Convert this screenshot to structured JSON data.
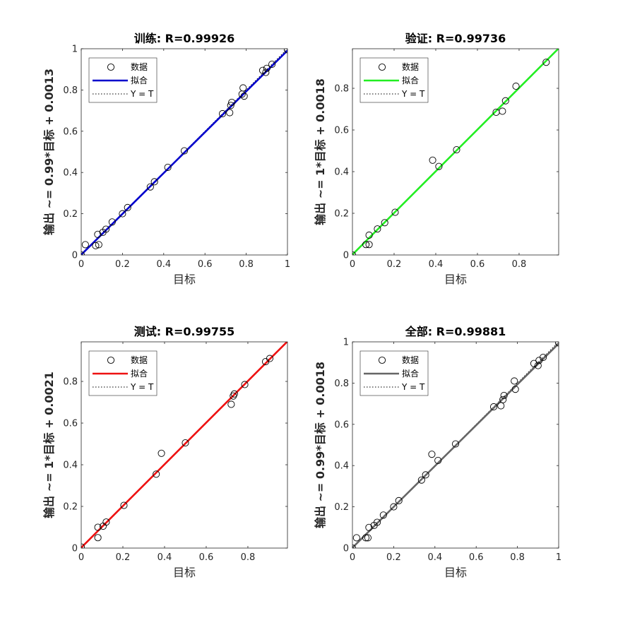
{
  "chart_data": [
    {
      "type": "scatter",
      "title": "训练: R=0.99926",
      "xlabel": "目标",
      "ylabel": "输出 ~= 0.99*目标 + 0.0013",
      "xlim": [
        0,
        1
      ],
      "ylim": [
        0,
        1
      ],
      "xticks": [
        "0",
        "0.2",
        "0.4",
        "0.6",
        "0.8",
        "1"
      ],
      "yticks": [
        "0",
        "0.2",
        "0.4",
        "0.6",
        "0.8",
        "1"
      ],
      "fit_color": "#0000cc",
      "fit": {
        "slope": 0.99,
        "intercept": 0.0013
      },
      "legend": {
        "position": "top-left",
        "data_label": "数据",
        "fit_label": "拟合",
        "ref_label": "Y = T"
      },
      "grid": false,
      "points": [
        [
          0.0,
          0.0
        ],
        [
          0.02,
          0.05
        ],
        [
          0.07,
          0.045
        ],
        [
          0.08,
          0.1
        ],
        [
          0.085,
          0.05
        ],
        [
          0.105,
          0.11
        ],
        [
          0.12,
          0.125
        ],
        [
          0.15,
          0.16
        ],
        [
          0.2,
          0.2
        ],
        [
          0.225,
          0.23
        ],
        [
          0.335,
          0.33
        ],
        [
          0.355,
          0.355
        ],
        [
          0.42,
          0.425
        ],
        [
          0.5,
          0.505
        ],
        [
          0.685,
          0.685
        ],
        [
          0.72,
          0.69
        ],
        [
          0.725,
          0.725
        ],
        [
          0.73,
          0.74
        ],
        [
          0.78,
          0.78
        ],
        [
          0.785,
          0.81
        ],
        [
          0.79,
          0.77
        ],
        [
          0.88,
          0.895
        ],
        [
          0.895,
          0.885
        ],
        [
          0.9,
          0.905
        ],
        [
          0.925,
          0.925
        ],
        [
          1.0,
          0.995
        ]
      ]
    },
    {
      "type": "scatter",
      "title": "验证: R=0.99736",
      "xlabel": "目标",
      "ylabel": "输出 ~= 1*目标 + 0.0018",
      "xlim": [
        0,
        0.99
      ],
      "ylim": [
        0,
        0.99
      ],
      "xticks": [
        "0",
        "0.2",
        "0.4",
        "0.6",
        "0.8"
      ],
      "yticks": [
        "0",
        "0.2",
        "0.4",
        "0.6",
        "0.8"
      ],
      "fit_color": "#22ee22",
      "fit": {
        "slope": 1.0,
        "intercept": 0.0018
      },
      "legend": {
        "position": "top-left",
        "data_label": "数据",
        "fit_label": "拟合",
        "ref_label": "Y = T"
      },
      "grid": false,
      "points": [
        [
          0.0,
          0.0
        ],
        [
          0.065,
          0.05
        ],
        [
          0.08,
          0.05
        ],
        [
          0.08,
          0.095
        ],
        [
          0.12,
          0.125
        ],
        [
          0.155,
          0.155
        ],
        [
          0.205,
          0.205
        ],
        [
          0.385,
          0.455
        ],
        [
          0.415,
          0.425
        ],
        [
          0.5,
          0.505
        ],
        [
          0.69,
          0.685
        ],
        [
          0.72,
          0.69
        ],
        [
          0.735,
          0.74
        ],
        [
          0.785,
          0.81
        ],
        [
          0.93,
          0.925
        ]
      ]
    },
    {
      "type": "scatter",
      "title": "测试: R=0.99755",
      "xlabel": "目标",
      "ylabel": "输出 ~= 1*目标 + 0.0021",
      "xlim": [
        0,
        0.99
      ],
      "ylim": [
        0,
        0.99
      ],
      "xticks": [
        "0",
        "0.2",
        "0.4",
        "0.6",
        "0.8"
      ],
      "yticks": [
        "0",
        "0.2",
        "0.4",
        "0.6",
        "0.8"
      ],
      "fit_color": "#ee1111",
      "fit": {
        "slope": 1.0,
        "intercept": 0.0021
      },
      "legend": {
        "position": "top-left",
        "data_label": "数据",
        "fit_label": "拟合",
        "ref_label": "Y = T"
      },
      "grid": false,
      "points": [
        [
          0.0,
          0.005
        ],
        [
          0.08,
          0.1
        ],
        [
          0.08,
          0.05
        ],
        [
          0.105,
          0.105
        ],
        [
          0.12,
          0.125
        ],
        [
          0.205,
          0.205
        ],
        [
          0.36,
          0.355
        ],
        [
          0.385,
          0.455
        ],
        [
          0.5,
          0.505
        ],
        [
          0.72,
          0.69
        ],
        [
          0.73,
          0.73
        ],
        [
          0.735,
          0.74
        ],
        [
          0.785,
          0.785
        ],
        [
          0.885,
          0.895
        ],
        [
          0.905,
          0.91
        ]
      ]
    },
    {
      "type": "scatter",
      "title": "全部: R=0.99881",
      "xlabel": "目标",
      "ylabel": "输出 ~= 0.99*目标 + 0.0018",
      "xlim": [
        0,
        1
      ],
      "ylim": [
        0,
        1
      ],
      "xticks": [
        "0",
        "0.2",
        "0.4",
        "0.6",
        "0.8",
        "1"
      ],
      "yticks": [
        "0",
        "0.2",
        "0.4",
        "0.6",
        "0.8",
        "1"
      ],
      "fit_color": "#666666",
      "fit": {
        "slope": 0.99,
        "intercept": 0.0018
      },
      "legend": {
        "position": "top-left",
        "data_label": "数据",
        "fit_label": "拟合",
        "ref_label": "Y = T"
      },
      "grid": false,
      "points": [
        [
          0.0,
          0.0
        ],
        [
          0.02,
          0.05
        ],
        [
          0.065,
          0.05
        ],
        [
          0.075,
          0.05
        ],
        [
          0.08,
          0.1
        ],
        [
          0.105,
          0.11
        ],
        [
          0.12,
          0.125
        ],
        [
          0.15,
          0.16
        ],
        [
          0.2,
          0.2
        ],
        [
          0.225,
          0.23
        ],
        [
          0.335,
          0.33
        ],
        [
          0.355,
          0.355
        ],
        [
          0.385,
          0.455
        ],
        [
          0.415,
          0.425
        ],
        [
          0.5,
          0.505
        ],
        [
          0.685,
          0.685
        ],
        [
          0.72,
          0.69
        ],
        [
          0.73,
          0.72
        ],
        [
          0.735,
          0.74
        ],
        [
          0.785,
          0.81
        ],
        [
          0.79,
          0.77
        ],
        [
          0.88,
          0.895
        ],
        [
          0.9,
          0.885
        ],
        [
          0.905,
          0.91
        ],
        [
          0.925,
          0.925
        ],
        [
          1.0,
          0.995
        ]
      ]
    }
  ]
}
